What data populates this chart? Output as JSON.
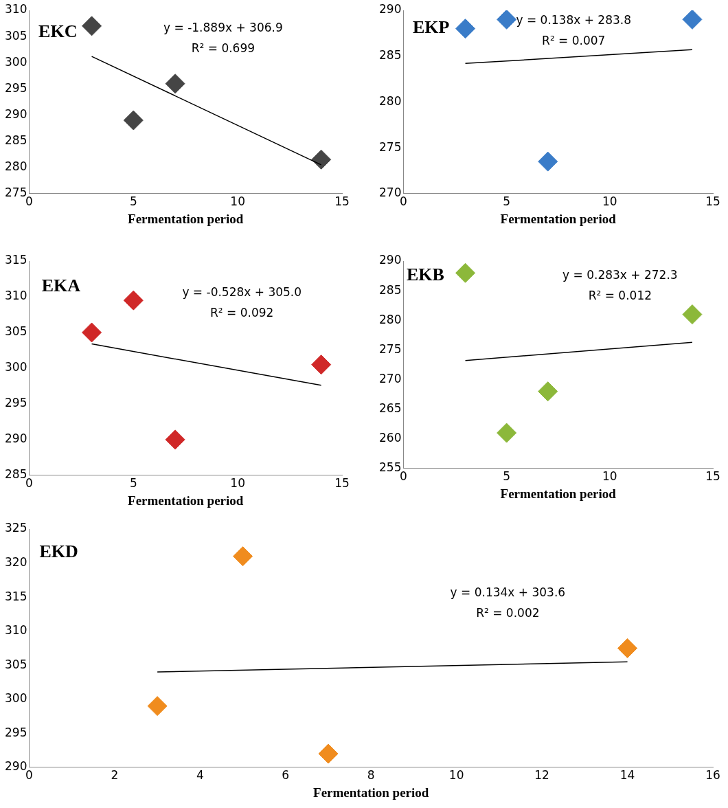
{
  "chart_data": [
    {
      "type": "scatter",
      "title": "EKC",
      "xlabel": "Fermentation period",
      "xlim": [
        0,
        15
      ],
      "xticks": [
        0,
        5,
        10,
        15
      ],
      "ylim": [
        275,
        310
      ],
      "yticks": [
        275,
        280,
        285,
        290,
        295,
        300,
        305,
        310
      ],
      "grid": false,
      "legend": false,
      "marker": "diamond",
      "annotations": [
        "y = -1.889x + 306.9",
        "R² = 0.699"
      ],
      "series": [
        {
          "color": "#454545",
          "x": [
            3,
            5,
            7,
            14
          ],
          "values": [
            307,
            289,
            296,
            281.5
          ]
        },
        {
          "type": "line",
          "color": "#000000",
          "marker": "none",
          "x": [
            3,
            14
          ],
          "values": [
            301.2,
            280.5
          ]
        }
      ]
    },
    {
      "type": "scatter",
      "title": "EKP",
      "xlabel": "Fermentation period",
      "xlim": [
        0,
        15
      ],
      "xticks": [
        0,
        5,
        10,
        15
      ],
      "ylim": [
        270,
        290
      ],
      "yticks": [
        270,
        275,
        280,
        285,
        290
      ],
      "grid": false,
      "legend": false,
      "marker": "diamond",
      "annotations": [
        "y = 0.138x + 283.8",
        "R² = 0.007"
      ],
      "series": [
        {
          "color": "#3a7cc8",
          "x": [
            3,
            5,
            7,
            14
          ],
          "values": [
            288,
            289,
            273.5,
            289
          ]
        },
        {
          "type": "line",
          "color": "#000000",
          "marker": "none",
          "x": [
            3,
            14
          ],
          "values": [
            284.2,
            285.7
          ]
        }
      ]
    },
    {
      "type": "scatter",
      "title": "EKA",
      "xlabel": "Fermentation period",
      "xlim": [
        0,
        15
      ],
      "xticks": [
        0,
        5,
        10,
        15
      ],
      "ylim": [
        285,
        315
      ],
      "yticks": [
        285,
        290,
        295,
        300,
        305,
        310,
        315
      ],
      "grid": false,
      "legend": false,
      "marker": "diamond",
      "annotations": [
        "y = -0.528x + 305.0",
        "R² = 0.092"
      ],
      "series": [
        {
          "color": "#d02828",
          "x": [
            3,
            5,
            7,
            14
          ],
          "values": [
            305,
            309.5,
            290,
            300.5
          ]
        },
        {
          "type": "line",
          "color": "#000000",
          "marker": "none",
          "x": [
            3,
            14
          ],
          "values": [
            303.4,
            297.6
          ]
        }
      ]
    },
    {
      "type": "scatter",
      "title": "EKB",
      "xlabel": "Fermentation period",
      "xlim": [
        0,
        15
      ],
      "xticks": [
        0,
        5,
        10,
        15
      ],
      "ylim": [
        255,
        290
      ],
      "yticks": [
        255,
        260,
        265,
        270,
        275,
        280,
        285,
        290
      ],
      "grid": false,
      "legend": false,
      "marker": "diamond",
      "annotations": [
        "y = 0.283x + 272.3",
        "R² = 0.012"
      ],
      "series": [
        {
          "color": "#8cb83a",
          "x": [
            3,
            5,
            7,
            14
          ],
          "values": [
            288,
            261,
            268,
            281
          ]
        },
        {
          "type": "line",
          "color": "#000000",
          "marker": "none",
          "x": [
            3,
            14
          ],
          "values": [
            273.2,
            276.3
          ]
        }
      ]
    },
    {
      "type": "scatter",
      "title": "EKD",
      "xlabel": "Fermentation period",
      "xlim": [
        0,
        16
      ],
      "xticks": [
        0,
        2,
        4,
        6,
        8,
        10,
        12,
        14,
        16
      ],
      "ylim": [
        290,
        325
      ],
      "yticks": [
        290,
        295,
        300,
        305,
        310,
        315,
        320,
        325
      ],
      "grid": false,
      "legend": false,
      "marker": "diamond",
      "annotations": [
        "y = 0.134x + 303.6",
        "R² = 0.002"
      ],
      "series": [
        {
          "color": "#f08c1e",
          "x": [
            3,
            5,
            7,
            14
          ],
          "values": [
            299,
            321,
            292,
            307.5
          ]
        },
        {
          "type": "line",
          "color": "#000000",
          "marker": "none",
          "x": [
            3,
            14
          ],
          "values": [
            304.0,
            305.5
          ]
        }
      ]
    }
  ]
}
